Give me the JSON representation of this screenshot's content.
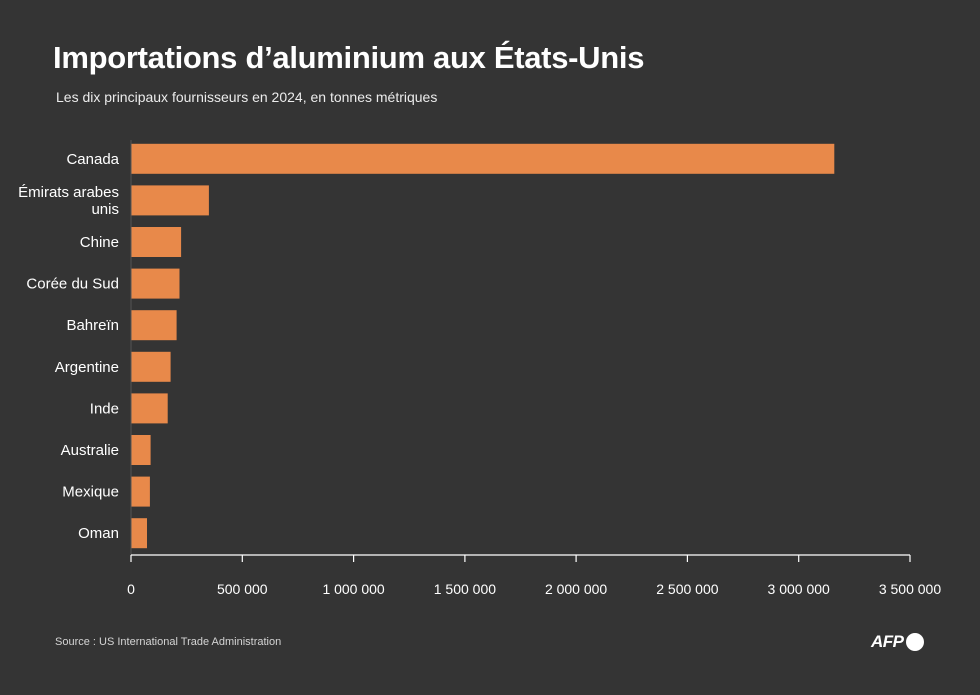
{
  "header": {
    "title": "Importations d’aluminium aux États-Unis",
    "subtitle": "Les dix principaux fournisseurs en 2024, en tonnes métriques"
  },
  "footer": {
    "source": "Source : US International Trade Administration",
    "logo_text": "AFP"
  },
  "colors": {
    "background": "#343434",
    "bar": "#e8894a",
    "axis": "#ffffff",
    "text": "#ffffff"
  },
  "chart_data": {
    "type": "bar",
    "orientation": "horizontal",
    "categories": [
      [
        "Canada"
      ],
      [
        "Émirats arabes",
        "unis"
      ],
      [
        "Chine"
      ],
      [
        "Corée du Sud"
      ],
      [
        "Bahreïn"
      ],
      [
        "Argentine"
      ],
      [
        "Inde"
      ],
      [
        "Australie"
      ],
      [
        "Mexique"
      ],
      [
        "Oman"
      ]
    ],
    "values": [
      3160000,
      350000,
      225000,
      218000,
      205000,
      178000,
      165000,
      88000,
      85000,
      72000
    ],
    "xlim": [
      0,
      3500000
    ],
    "ticks": [
      0,
      500000,
      1000000,
      1500000,
      2000000,
      2500000,
      3000000,
      3500000
    ],
    "tick_labels": [
      "0",
      "500 000",
      "1 000 000",
      "1 500 000",
      "2 000 000",
      "2 500 000",
      "3 000 000",
      "3 500 000"
    ],
    "grid": false,
    "legend": "none"
  }
}
